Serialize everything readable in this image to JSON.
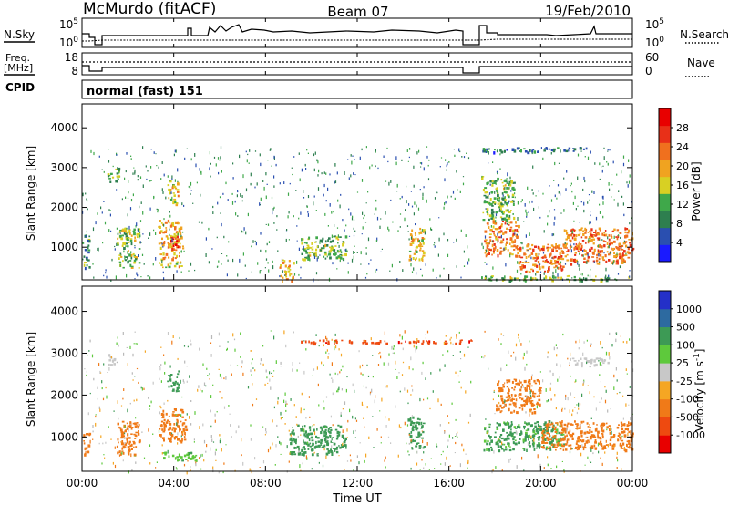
{
  "header": {
    "station": "McMurdo (fitACF)",
    "beam": "Beam 07",
    "date": "19/Feb/2010"
  },
  "top_panels": {
    "nsky_label": "N.Sky",
    "nsky_ticks": [
      "10^5",
      "10^0"
    ],
    "nsearch_label": "N.Search",
    "nsearch_ticks": [
      "10^5",
      "10^0"
    ],
    "freq_label": "Freq.",
    "freq_unit": "[MHz]",
    "freq_ticks": [
      "18",
      "8"
    ],
    "nave_label": "Nave",
    "nave_ticks": [
      "60",
      "0"
    ],
    "cpid_label": "CPID",
    "cpid_value": "normal (fast) 151"
  },
  "colors": {
    "power": [
      "#1a1aff",
      "#2a4fb0",
      "#2e7f4f",
      "#3fa84a",
      "#d8d023",
      "#f0a320",
      "#f0701e",
      "#e83018",
      "#e80000"
    ],
    "velocity": [
      "#e80000",
      "#ee4a10",
      "#f07a18",
      "#f5a623",
      "#c8c8c8",
      "#5ec93c",
      "#3d9a55",
      "#2d6aa0",
      "#2430c8"
    ],
    "grey": "#b8b8b8"
  },
  "chart_data": [
    {
      "type": "heatmap",
      "name": "power",
      "ylabel": "Slant Range [km]",
      "xlabel": "",
      "ylim": [
        180,
        4600
      ],
      "xlim_hours": [
        0,
        24
      ],
      "yticks": [
        "1000",
        "2000",
        "3000",
        "4000"
      ],
      "colorbar": {
        "label": "Power [dB]",
        "ticks": [
          "4",
          "8",
          "12",
          "16",
          "20",
          "24",
          "28"
        ],
        "range": [
          0,
          32
        ]
      },
      "data_gap_hours": [
        16.95,
        17.4
      ],
      "regions": [
        {
          "t": [
            0.0,
            0.3
          ],
          "r": [
            500,
            1400
          ],
          "v": 10
        },
        {
          "t": [
            1.1,
            1.6
          ],
          "r": [
            2650,
            3000
          ],
          "v": 12
        },
        {
          "t": [
            1.5,
            2.5
          ],
          "r": [
            500,
            1500
          ],
          "v": 14
        },
        {
          "t": [
            3.3,
            4.4
          ],
          "r": [
            700,
            1700
          ],
          "v": 20
        },
        {
          "t": [
            3.8,
            4.2
          ],
          "r": [
            900,
            1300
          ],
          "v": 27
        },
        {
          "t": [
            3.7,
            4.2
          ],
          "r": [
            2100,
            2700
          ],
          "v": 18
        },
        {
          "t": [
            3.3,
            4.3
          ],
          "r": [
            500,
            650
          ],
          "v": 17
        },
        {
          "t": [
            8.6,
            9.2
          ],
          "r": [
            180,
            700
          ],
          "v": 20
        },
        {
          "t": [
            9.5,
            11.5
          ],
          "r": [
            700,
            1300
          ],
          "v": 13
        },
        {
          "t": [
            14.2,
            14.9
          ],
          "r": [
            700,
            1500
          ],
          "v": 18
        },
        {
          "t": [
            17.5,
            19.0
          ],
          "r": [
            800,
            1700
          ],
          "v": 22
        },
        {
          "t": [
            17.4,
            18.8
          ],
          "r": [
            1700,
            2800
          ],
          "v": 13
        },
        {
          "t": [
            19.0,
            21.0
          ],
          "r": [
            400,
            1100
          ],
          "v": 23
        },
        {
          "t": [
            21.0,
            24.0
          ],
          "r": [
            600,
            1500
          ],
          "v": 23
        },
        {
          "t": [
            17.4,
            24.0
          ],
          "r": [
            180,
            300
          ],
          "v": 13
        },
        {
          "t": [
            17.4,
            22.0
          ],
          "r": [
            3400,
            3530
          ],
          "v": 8
        }
      ]
    },
    {
      "type": "heatmap",
      "name": "velocity",
      "ylabel": "Slant Range [km]",
      "xlabel": "Time UT",
      "ylim": [
        180,
        4600
      ],
      "xlim_hours": [
        0,
        24
      ],
      "yticks": [
        "1000",
        "2000",
        "3000",
        "4000"
      ],
      "xticks": [
        "00:00",
        "04:00",
        "08:00",
        "12:00",
        "16:00",
        "20:00",
        "00:00"
      ],
      "colorbar": {
        "label": "Velocity [m s^-1]",
        "ticks": [
          "1000",
          "500",
          "100",
          "25",
          "-25",
          "-100",
          "-500",
          "-1000"
        ]
      },
      "data_gap_hours": [
        16.95,
        17.4
      ],
      "regions": [
        {
          "t": [
            0.0,
            0.3
          ],
          "r": [
            600,
            1100
          ],
          "v": -300
        },
        {
          "t": [
            1.5,
            2.5
          ],
          "r": [
            600,
            1400
          ],
          "v": -200
        },
        {
          "t": [
            3.3,
            4.5
          ],
          "r": [
            900,
            1700
          ],
          "v": -200
        },
        {
          "t": [
            3.5,
            5.0
          ],
          "r": [
            450,
            650
          ],
          "v": 80
        },
        {
          "t": [
            3.7,
            4.2
          ],
          "r": [
            2100,
            2600
          ],
          "v": 300
        },
        {
          "t": [
            1.1,
            1.6
          ],
          "r": [
            2700,
            3000
          ],
          "v": 0
        },
        {
          "t": [
            9.0,
            11.5
          ],
          "r": [
            600,
            1300
          ],
          "v": 200
        },
        {
          "t": [
            14.2,
            14.9
          ],
          "r": [
            700,
            1500
          ],
          "v": 150
        },
        {
          "t": [
            17.5,
            21.0
          ],
          "r": [
            700,
            1400
          ],
          "v": 120
        },
        {
          "t": [
            18.0,
            20.0
          ],
          "r": [
            1600,
            2400
          ],
          "v": -250
        },
        {
          "t": [
            20.0,
            24.0
          ],
          "r": [
            700,
            1400
          ],
          "v": -250
        },
        {
          "t": [
            21.0,
            23.0
          ],
          "r": [
            2700,
            2900
          ],
          "v": 0
        },
        {
          "t": [
            9.5,
            17.0
          ],
          "r": [
            3250,
            3330
          ],
          "v": -800
        }
      ]
    }
  ]
}
